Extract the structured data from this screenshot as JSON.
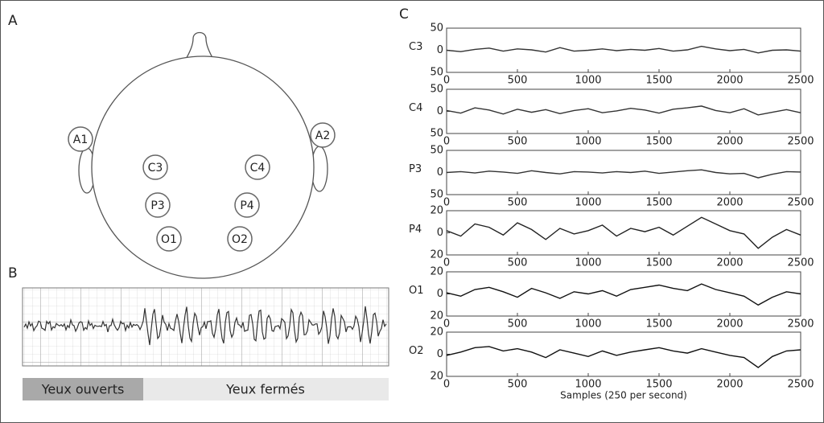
{
  "panels": {
    "a": "A",
    "b": "B",
    "c": "C"
  },
  "head": {
    "electrodes": [
      "A1",
      "A2",
      "C3",
      "C4",
      "P3",
      "P4",
      "O1",
      "O2"
    ]
  },
  "eeg_strip": {
    "segments": [
      "Yeux ouverts",
      "Yeux fermés"
    ]
  },
  "chart_data": [
    {
      "type": "line",
      "ylabel": "C3",
      "x": [
        0,
        100,
        200,
        300,
        400,
        500,
        600,
        700,
        800,
        900,
        1000,
        1100,
        1200,
        1300,
        1400,
        1500,
        1600,
        1700,
        1800,
        1900,
        2000,
        2100,
        2200,
        2300,
        2400,
        2500
      ],
      "values": [
        0,
        -3,
        2,
        5,
        -2,
        3,
        1,
        -4,
        6,
        -2,
        0,
        3,
        -1,
        2,
        0,
        4,
        -2,
        1,
        9,
        3,
        -1,
        2,
        -6,
        0,
        1,
        -2
      ],
      "color": "#333333",
      "xlim": [
        0,
        2500
      ],
      "xticks": [
        0,
        500,
        1000,
        1500,
        2000,
        2500
      ],
      "ylim": [
        -50,
        50
      ],
      "yticks": [
        {
          "value": -50,
          "label": "50"
        },
        0,
        50
      ]
    },
    {
      "type": "line",
      "ylabel": "C4",
      "x": [
        0,
        100,
        200,
        300,
        400,
        500,
        600,
        700,
        800,
        900,
        1000,
        1100,
        1200,
        1300,
        1400,
        1500,
        1600,
        1700,
        1800,
        1900,
        2000,
        2100,
        2200,
        2300,
        2400,
        2500
      ],
      "values": [
        2,
        -4,
        8,
        3,
        -6,
        5,
        -2,
        4,
        -5,
        2,
        6,
        -3,
        1,
        7,
        3,
        -4,
        5,
        8,
        12,
        2,
        -3,
        6,
        -8,
        -2,
        4,
        -3
      ],
      "color": "#333333",
      "xlim": [
        0,
        2500
      ],
      "xticks": [
        0,
        500,
        1000,
        1500,
        2000,
        2500
      ],
      "ylim": [
        -50,
        50
      ],
      "yticks": [
        {
          "value": -50,
          "label": "50"
        },
        0,
        50
      ]
    },
    {
      "type": "line",
      "ylabel": "P3",
      "x": [
        0,
        100,
        200,
        300,
        400,
        500,
        600,
        700,
        800,
        900,
        1000,
        1100,
        1200,
        1300,
        1400,
        1500,
        1600,
        1700,
        1800,
        1900,
        2000,
        2100,
        2200,
        2300,
        2400,
        2500
      ],
      "values": [
        0,
        2,
        -1,
        3,
        1,
        -2,
        4,
        0,
        -3,
        2,
        1,
        -1,
        2,
        0,
        3,
        -2,
        1,
        4,
        6,
        0,
        -3,
        -2,
        -12,
        -4,
        2,
        1
      ],
      "color": "#333333",
      "xlim": [
        0,
        2500
      ],
      "xticks": [
        0,
        500,
        1000,
        1500,
        2000,
        2500
      ],
      "ylim": [
        -50,
        50
      ],
      "yticks": [
        {
          "value": -50,
          "label": "50"
        },
        0,
        50
      ]
    },
    {
      "type": "line",
      "ylabel": "P4",
      "x": [
        0,
        100,
        200,
        300,
        400,
        500,
        600,
        700,
        800,
        900,
        1000,
        1100,
        1200,
        1300,
        1400,
        1500,
        1600,
        1700,
        1800,
        1900,
        2000,
        2100,
        2200,
        2300,
        2400,
        2500
      ],
      "values": [
        2,
        -3,
        8,
        5,
        -2,
        9,
        3,
        -6,
        4,
        -1,
        2,
        7,
        -3,
        4,
        1,
        5,
        -2,
        6,
        14,
        8,
        2,
        -1,
        -14,
        -4,
        3,
        -2
      ],
      "color": "#222222",
      "xlim": [
        0,
        2500
      ],
      "xticks": [
        0,
        500,
        1000,
        1500,
        2000,
        2500
      ],
      "ylim": [
        -20,
        20
      ],
      "yticks": [
        {
          "value": -20,
          "label": "20"
        },
        0,
        20
      ]
    },
    {
      "type": "line",
      "ylabel": "O1",
      "x": [
        0,
        100,
        200,
        300,
        400,
        500,
        600,
        700,
        800,
        900,
        1000,
        1100,
        1200,
        1300,
        1400,
        1500,
        1600,
        1700,
        1800,
        1900,
        2000,
        2100,
        2200,
        2300,
        2400,
        2500
      ],
      "values": [
        1,
        -2,
        4,
        6,
        2,
        -3,
        5,
        1,
        -4,
        2,
        0,
        3,
        -2,
        4,
        6,
        8,
        5,
        3,
        9,
        4,
        1,
        -2,
        -10,
        -3,
        2,
        0
      ],
      "color": "#111111",
      "xlim": [
        0,
        2500
      ],
      "xticks": [
        0,
        500,
        1000,
        1500,
        2000,
        2500
      ],
      "ylim": [
        -20,
        20
      ],
      "yticks": [
        {
          "value": -20,
          "label": "20"
        },
        0,
        20
      ]
    },
    {
      "type": "line",
      "ylabel": "O2",
      "xlabel": "Samples (250 per second)",
      "x": [
        0,
        100,
        200,
        300,
        400,
        500,
        600,
        700,
        800,
        900,
        1000,
        1100,
        1200,
        1300,
        1400,
        1500,
        1600,
        1700,
        1800,
        1900,
        2000,
        2100,
        2200,
        2300,
        2400,
        2500
      ],
      "values": [
        -1,
        2,
        6,
        7,
        3,
        5,
        2,
        -3,
        4,
        1,
        -2,
        3,
        -1,
        2,
        4,
        6,
        3,
        1,
        5,
        2,
        -1,
        -3,
        -12,
        -2,
        3,
        4
      ],
      "color": "#111111",
      "xlim": [
        0,
        2500
      ],
      "xticks": [
        0,
        500,
        1000,
        1500,
        2000,
        2500
      ],
      "ylim": [
        -20,
        20
      ],
      "yticks": [
        {
          "value": -20,
          "label": "20"
        },
        0,
        20
      ]
    }
  ]
}
